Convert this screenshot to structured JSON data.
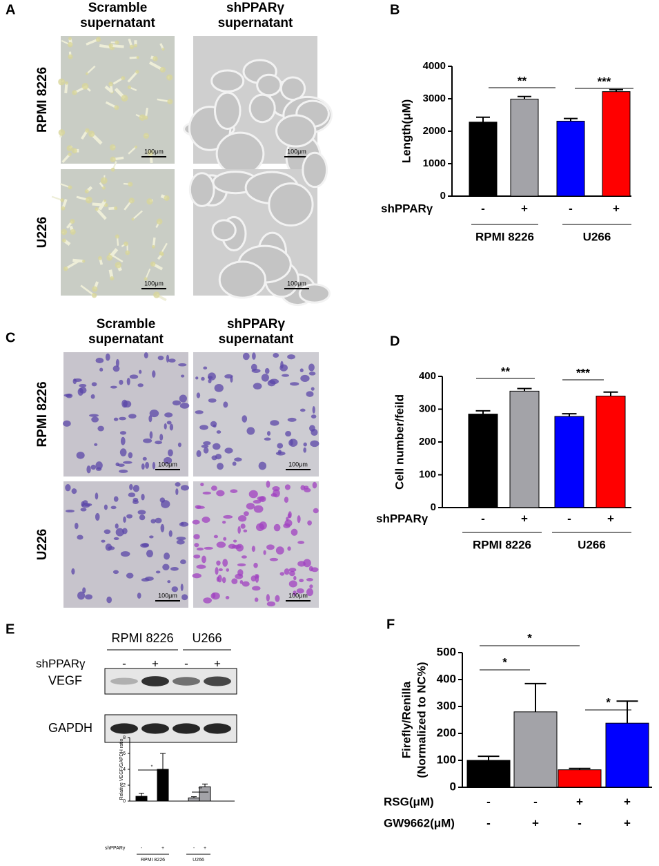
{
  "figure": {
    "panel_A": {
      "label": "A",
      "columns": [
        [
          "Scramble",
          "supernatant"
        ],
        [
          "shPPARγ",
          "supernatant"
        ]
      ],
      "rows": [
        "RPMI 8226",
        "U226"
      ],
      "scale_bar": "100μm"
    },
    "panel_C": {
      "label": "C",
      "columns": [
        [
          "Scramble",
          "supernatant"
        ],
        [
          "shPPARγ",
          "supernatant"
        ]
      ],
      "rows": [
        "RPMI 8226",
        "U226"
      ],
      "scale_bar": "100μm"
    },
    "panel_E": {
      "label": "E",
      "groups": [
        "RPMI 8226",
        "U266"
      ],
      "treatment": "shPPARγ",
      "signs": [
        "-",
        "+",
        "-",
        "+"
      ],
      "bands": [
        "VEGF",
        "GAPDH"
      ]
    }
  },
  "chart_data": [
    {
      "type": "bar",
      "panel": "B",
      "ylabel": "Length(μM)",
      "values": [
        2280,
        2990,
        2310,
        3220
      ],
      "errors": [
        150,
        80,
        80,
        60
      ],
      "colors": [
        "#000000",
        "#a3a3a8",
        "#0000ff",
        "#ff0000"
      ],
      "ylim": [
        0,
        4000
      ],
      "yticks": [
        0,
        1000,
        2000,
        3000,
        4000
      ],
      "rows": [
        {
          "label": "shPPARγ",
          "signs": [
            "-",
            "+",
            "-",
            "+"
          ]
        }
      ],
      "groups": [
        "RPMI 8226",
        "U266"
      ],
      "significance": [
        "**",
        "***"
      ]
    },
    {
      "type": "bar",
      "panel": "D",
      "ylabel": "Cell number/feild",
      "values": [
        285,
        355,
        278,
        340
      ],
      "errors": [
        10,
        8,
        8,
        12
      ],
      "colors": [
        "#000000",
        "#a3a3a8",
        "#0000ff",
        "#ff0000"
      ],
      "ylim": [
        0,
        400
      ],
      "yticks": [
        0,
        100,
        200,
        300,
        400
      ],
      "rows": [
        {
          "label": "shPPARγ",
          "signs": [
            "-",
            "+",
            "-",
            "+"
          ]
        }
      ],
      "groups": [
        "RPMI 8226",
        "U266"
      ],
      "significance": [
        "**",
        "***"
      ]
    },
    {
      "type": "bar",
      "ylabel": "Relative VEGF/GAPDH ratio",
      "values": [
        0.6,
        4.0,
        0.4,
        1.8
      ],
      "errors": [
        0.4,
        2.0,
        0.15,
        0.35
      ],
      "colors": [
        "#000000",
        "#000000",
        "#a3a3a8",
        "#a3a3a8"
      ],
      "ylim": [
        0,
        8
      ],
      "yticks": [
        0,
        2,
        4,
        6,
        8
      ],
      "rows": [
        {
          "label": "shPPARγ",
          "signs": [
            "-",
            "+",
            "-",
            "+"
          ]
        }
      ],
      "groups": [
        "RPMI 8226",
        "U266"
      ],
      "significance": [
        "*",
        "**"
      ]
    },
    {
      "type": "bar",
      "panel": "F",
      "ylabel": [
        "Firefly/Renilla",
        "(Normalized to NC%)"
      ],
      "values": [
        100,
        280,
        65,
        238
      ],
      "errors": [
        15,
        105,
        5,
        82
      ],
      "colors": [
        "#000000",
        "#a3a3a8",
        "#ff0000",
        "#0000ff"
      ],
      "ylim": [
        0,
        500
      ],
      "yticks": [
        0,
        100,
        200,
        300,
        400,
        500
      ],
      "rows": [
        {
          "label": "RSG(μM)",
          "signs": [
            "-",
            "-",
            "+",
            "+"
          ]
        },
        {
          "label": "GW9662(μM)",
          "signs": [
            "-",
            "+",
            "-",
            "+"
          ]
        }
      ],
      "significance": [
        "*",
        "*",
        "*"
      ]
    }
  ]
}
